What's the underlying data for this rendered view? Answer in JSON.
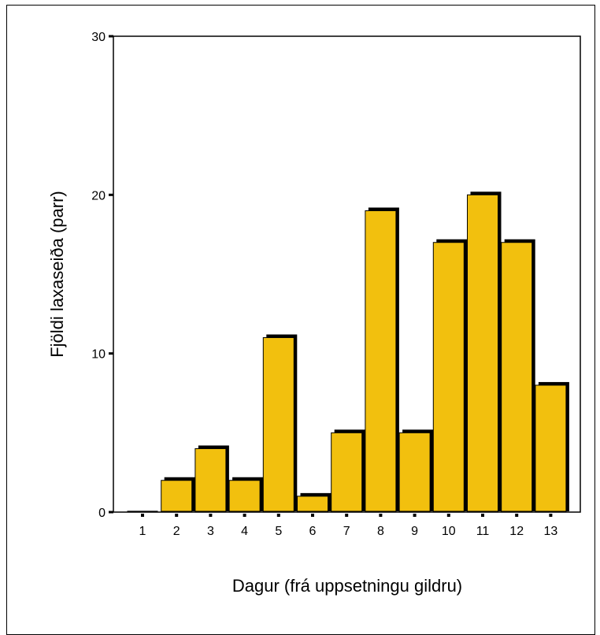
{
  "chart_data": {
    "type": "bar",
    "categories": [
      "1",
      "2",
      "3",
      "4",
      "5",
      "6",
      "7",
      "8",
      "9",
      "10",
      "11",
      "12",
      "13"
    ],
    "values": [
      0,
      2,
      4,
      2,
      11,
      1,
      5,
      19,
      5,
      17,
      20,
      17,
      8
    ],
    "title": "",
    "xlabel": "Dagur (frá uppsetningu gildru)",
    "ylabel": "Fjöldi laxaseiða (parr)",
    "ylim": [
      0,
      30
    ],
    "yticks": [
      0,
      10,
      20,
      30
    ],
    "grid": false,
    "legend": "none",
    "colors": {
      "bar_fill": "#F2C00E",
      "bar_shadow": "#000000",
      "axis": "#000000"
    }
  }
}
